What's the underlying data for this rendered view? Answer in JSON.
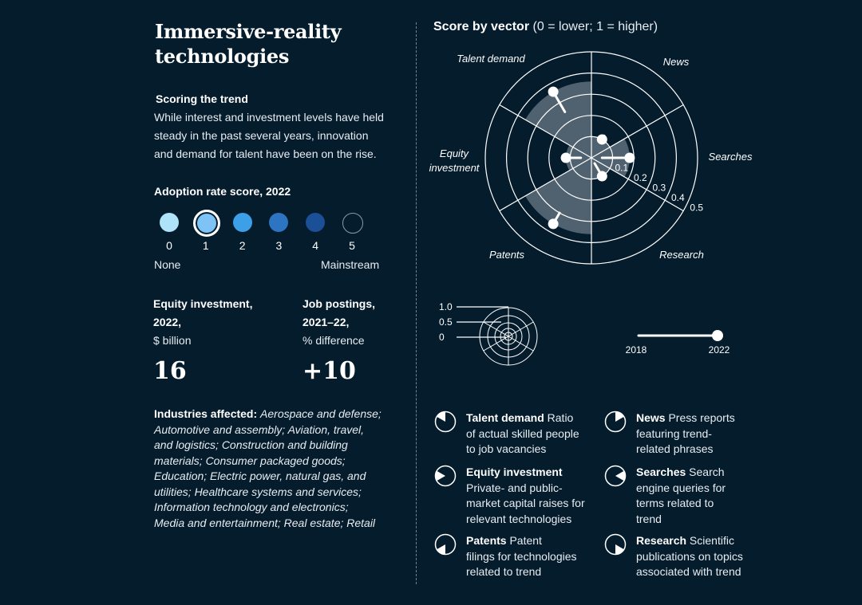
{
  "header": {
    "title_line1": "Immersive-reality",
    "title_line2": "technologies"
  },
  "scoring": {
    "heading": "Scoring the trend",
    "lines": [
      "While interest and investment levels have held",
      "steady in the past several years, innovation",
      "and demand for talent have been on the rise."
    ]
  },
  "adoption": {
    "heading": "Adoption rate score, 2022",
    "scores": [
      "0",
      "1",
      "2",
      "3",
      "4",
      "5"
    ],
    "colors": [
      "#aee3fa",
      "#7ec3f5",
      "#3c9fe8",
      "#2d74c3",
      "#1b4f96",
      "#051c2c"
    ],
    "selected": 1,
    "low_label": "None",
    "high_label": "Mainstream"
  },
  "equity": {
    "label_line1": "Equity investment,",
    "label_line2": "2022,",
    "unit": "$ billion",
    "value": "16"
  },
  "jobs": {
    "label_line1": "Job postings,",
    "label_line2": "2021–22,",
    "unit": "% difference",
    "value": "+10"
  },
  "industries": {
    "label": "Industries affected:",
    "lines": [
      "Aerospace and defense;",
      "Automotive and assembly; Aviation, travel,",
      "and logistics; Construction and building",
      "materials; Consumer packaged goods;",
      "Education; Electric power, natural gas, and",
      "utilities; Healthcare systems and services;",
      "Information technology and electronics;",
      "Media and entertainment; Real estate; Retail"
    ]
  },
  "chart_data": {
    "type": "radial",
    "title": "Score by vector",
    "subtitle": "(0 = lower; 1 = higher)",
    "categories": [
      "Talent demand",
      "News",
      "Searches",
      "Research",
      "Patents",
      "Equity investment"
    ],
    "rings": [
      "0.1",
      "0.2",
      "0.3",
      "0.4",
      "0.5"
    ],
    "ring_values": [
      0.1,
      0.2,
      0.3,
      0.4,
      0.5
    ],
    "series": [
      {
        "name": "2018",
        "values": [
          0.25,
          0.12,
          0.05,
          0.03,
          0.3,
          0.05
        ]
      },
      {
        "name": "2022",
        "values": [
          0.36,
          0.1,
          0.18,
          0.1,
          0.36,
          0.12
        ]
      }
    ],
    "scale_key": {
      "ticks": [
        "1.0",
        "0.5",
        "0"
      ]
    },
    "time_key": {
      "start": "2018",
      "end": "2022"
    },
    "grid": true
  },
  "legend": [
    {
      "name": "Talent demand",
      "lines": [
        "Ratio",
        "of actual skilled people",
        "to job vacancies"
      ],
      "icon_angle": 300
    },
    {
      "name": "News",
      "lines": [
        "Press reports",
        "featuring trend-",
        "related phrases"
      ],
      "icon_angle": 0
    },
    {
      "name": "Equity investment",
      "lines": [
        "",
        "Private- and public-",
        "market capital raises for",
        "relevant technologies"
      ],
      "icon_angle": 240
    },
    {
      "name": "Searches",
      "lines": [
        "Search",
        "engine queries for",
        "terms related to",
        "trend"
      ],
      "icon_angle": 60
    },
    {
      "name": "Patents",
      "lines": [
        "Patent",
        "filings for technologies",
        "related to trend"
      ],
      "icon_angle": 180
    },
    {
      "name": "Research",
      "lines": [
        "Scientific",
        "publications on topics",
        "associated with trend"
      ],
      "icon_angle": 120
    }
  ]
}
